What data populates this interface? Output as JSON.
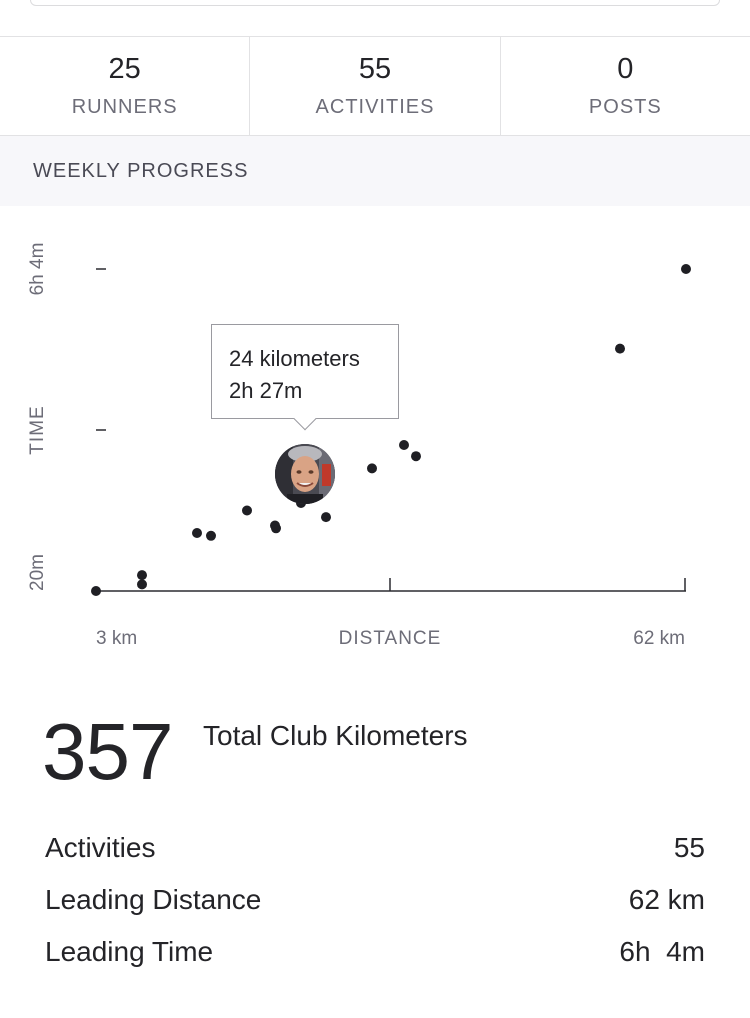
{
  "stats": [
    {
      "value": "25",
      "label": "RUNNERS"
    },
    {
      "value": "55",
      "label": "ACTIVITIES"
    },
    {
      "value": "0",
      "label": "POSTS"
    }
  ],
  "section_title": "WEEKLY PROGRESS",
  "chart_data": {
    "type": "scatter",
    "title": "",
    "xlabel": "DISTANCE",
    "ylabel": "TIME",
    "x_tick_labels": [
      "3 km",
      "62 km"
    ],
    "y_tick_labels": [
      "20m",
      "6h 4m"
    ],
    "x_unit": "km",
    "y_unit": "minutes",
    "xlim": [
      3,
      62
    ],
    "ylim": [
      20,
      364
    ],
    "points": [
      {
        "x": 3.0,
        "y": 20
      },
      {
        "x": 7.6,
        "y": 37
      },
      {
        "x": 7.6,
        "y": 27
      },
      {
        "x": 13.1,
        "y": 82
      },
      {
        "x": 14.5,
        "y": 79
      },
      {
        "x": 18.1,
        "y": 106
      },
      {
        "x": 21.0,
        "y": 87
      },
      {
        "x": 20.9,
        "y": 90
      },
      {
        "x": 23.5,
        "y": 114
      },
      {
        "x": 25.3,
        "y": 129
      },
      {
        "x": 26.0,
        "y": 99
      },
      {
        "x": 30.6,
        "y": 151
      },
      {
        "x": 33.8,
        "y": 176
      },
      {
        "x": 35.0,
        "y": 164
      },
      {
        "x": 55.4,
        "y": 279
      },
      {
        "x": 62.0,
        "y": 364
      }
    ],
    "highlight": {
      "x": 24,
      "y": 147,
      "label_distance": "24 kilometers",
      "label_time": "2h 27m"
    },
    "grid": false,
    "legend": "none"
  },
  "tooltip": {
    "line1": "24 kilometers",
    "line2": "2h 27m"
  },
  "total": {
    "value": "357",
    "label": "Total Club Kilometers"
  },
  "summary": [
    {
      "label": "Activities",
      "value": "55"
    },
    {
      "label": "Leading Distance",
      "value": "62 km"
    },
    {
      "label": "Leading Time",
      "value": "6h  4m"
    }
  ]
}
